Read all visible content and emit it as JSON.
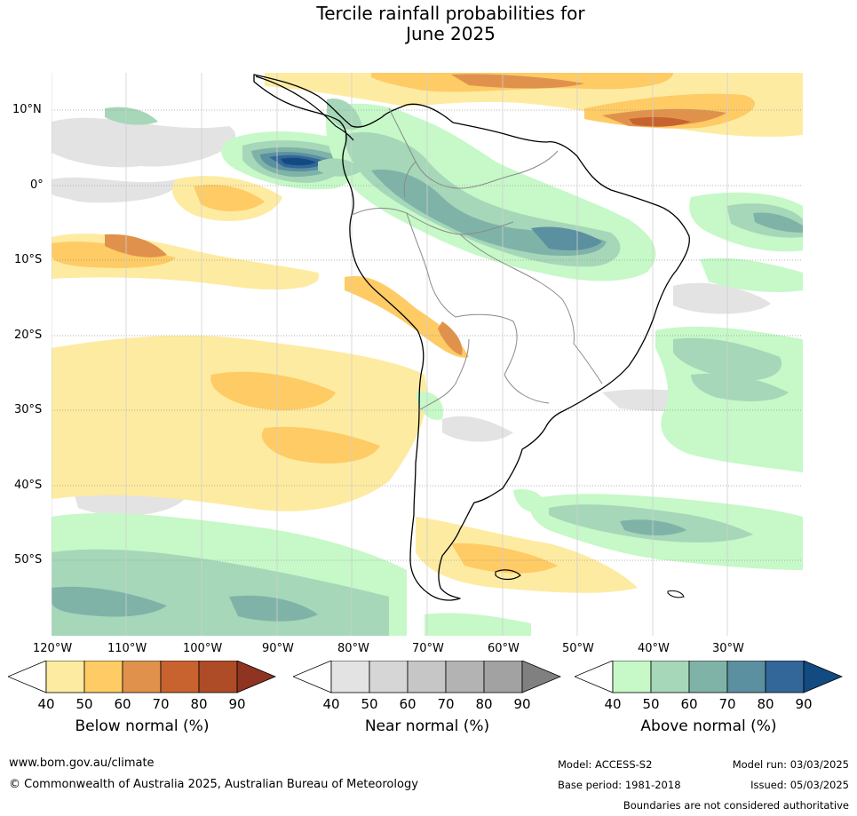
{
  "title_line1": "Tercile rainfall probabilities for",
  "title_line2": "June 2025",
  "map": {
    "lat_labels": [
      "10°N",
      "0°",
      "10°S",
      "20°S",
      "30°S",
      "40°S",
      "50°S"
    ],
    "lon_labels": [
      "120°W",
      "110°W",
      "100°W",
      "90°W",
      "80°W",
      "70°W",
      "60°W",
      "50°W",
      "40°W",
      "30°W"
    ]
  },
  "colorbars": [
    {
      "title": "Below normal (%)",
      "ticks": [
        "40",
        "50",
        "60",
        "70",
        "80",
        "90"
      ],
      "colors": [
        "#ffffff",
        "#feeba2",
        "#fecb65",
        "#e0924d",
        "#c8632f",
        "#ad4c26",
        "#8e3420"
      ]
    },
    {
      "title": "Near normal (%)",
      "ticks": [
        "40",
        "50",
        "60",
        "70",
        "80",
        "90"
      ],
      "colors": [
        "#ffffff",
        "#e3e3e3",
        "#d6d6d6",
        "#c6c6c6",
        "#b3b3b3",
        "#a2a2a2",
        "#808080"
      ]
    },
    {
      "title": "Above normal (%)",
      "ticks": [
        "40",
        "50",
        "60",
        "70",
        "80",
        "90"
      ],
      "colors": [
        "#ffffff",
        "#c6f8c8",
        "#a5d7b8",
        "#7fb3a8",
        "#5b90a0",
        "#336699",
        "#124a82"
      ]
    }
  ],
  "footer": {
    "url": "www.bom.gov.au/climate",
    "copyright": "© Commonwealth of Australia 2025, Australian Bureau of Meteorology",
    "model": "Model: ACCESS-S2",
    "base_period": "Base period: 1981-2018",
    "model_run": "Model run: 03/03/2025",
    "issued": "Issued: 05/03/2025",
    "disclaimer": "Boundaries are not considered authoritative"
  }
}
